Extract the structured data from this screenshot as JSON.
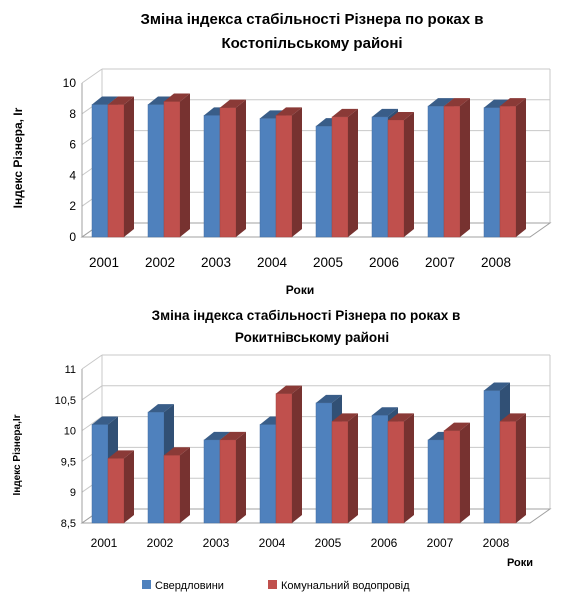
{
  "colors": {
    "series_blue": "#4f81bd",
    "series_red": "#c0504d"
  },
  "legend_icons": [
    "blue-square-icon",
    "red-square-icon"
  ],
  "chart_data": [
    {
      "type": "bar",
      "title_lines": [
        "Зміна індекса стабільності Різнера по роках в",
        "Костопільському районі"
      ],
      "xlabel": "Роки",
      "ylabel": "Індекс Різнера, Ir",
      "ylim": [
        0,
        10
      ],
      "y_ticks": [
        "0",
        "2",
        "4",
        "6",
        "8",
        "10"
      ],
      "grid": true,
      "categories": [
        "2001",
        "2002",
        "2003",
        "2004",
        "2005",
        "2006",
        "2007",
        "2008"
      ],
      "series": [
        {
          "name": "Свердловини",
          "values": [
            8.6,
            8.6,
            7.9,
            7.7,
            7.2,
            7.8,
            8.5,
            8.4
          ]
        },
        {
          "name": "Комунальний водопровід",
          "values": [
            8.6,
            8.8,
            8.4,
            7.9,
            7.8,
            7.6,
            8.5,
            8.5
          ]
        }
      ]
    },
    {
      "type": "bar",
      "title_lines": [
        "Зміна індекса стабільності  Різнера по роках в",
        "Рокитнівському районі"
      ],
      "xlabel": "Роки",
      "ylabel": "Індекс Різнера,Ir",
      "ylim": [
        8.5,
        11
      ],
      "y_ticks": [
        "8,5",
        "9",
        "9,5",
        "10",
        "10,5",
        "11"
      ],
      "grid": true,
      "categories": [
        "2001",
        "2002",
        "2003",
        "2004",
        "2005",
        "2006",
        "2007",
        "2008"
      ],
      "series": [
        {
          "name": "Свердловини",
          "values": [
            10.1,
            10.3,
            9.85,
            10.1,
            10.45,
            10.25,
            9.85,
            10.65
          ]
        },
        {
          "name": "Комунальний водопровід",
          "values": [
            9.55,
            9.6,
            9.85,
            10.6,
            10.15,
            10.15,
            10.0,
            10.15
          ]
        }
      ],
      "legend": {
        "position": "bottom",
        "entries": [
          "Свердловини",
          "Комунальний водопровід"
        ]
      }
    }
  ]
}
